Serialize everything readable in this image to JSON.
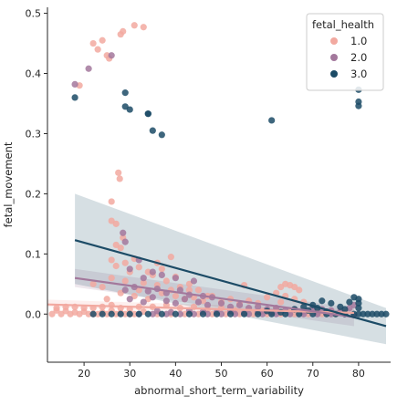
{
  "chart_data": {
    "type": "scatter",
    "xlabel": "abnormal_short_term_variability",
    "ylabel": "fetal_movement",
    "xlim": [
      12,
      87
    ],
    "ylim": [
      -0.08,
      0.51
    ],
    "x_ticks": [
      20,
      30,
      40,
      50,
      60,
      70,
      80
    ],
    "y_ticks": [
      0.0,
      0.1,
      0.2,
      0.3,
      0.4,
      0.5
    ],
    "grid": false,
    "legend": {
      "title": "fetal_health",
      "placement": "top-right"
    },
    "series": [
      {
        "name": "1.0",
        "color": "#f2a9a0",
        "points": [
          [
            13,
            0.0
          ],
          [
            14,
            0.01
          ],
          [
            15,
            0.0
          ],
          [
            16,
            0.005
          ],
          [
            17,
            0.0
          ],
          [
            18,
            0.012
          ],
          [
            19,
            0.0
          ],
          [
            20,
            0.004
          ],
          [
            21,
            0.0
          ],
          [
            22,
            0.01
          ],
          [
            23,
            0.0
          ],
          [
            24,
            0.003
          ],
          [
            25,
            0.0
          ],
          [
            26,
            0.015
          ],
          [
            27,
            0.0
          ],
          [
            28,
            0.002
          ],
          [
            29,
            0.0
          ],
          [
            30,
            0.008
          ],
          [
            31,
            0.0
          ],
          [
            32,
            0.012
          ],
          [
            14,
            0.006
          ],
          [
            16,
            0.012
          ],
          [
            18,
            0.003
          ],
          [
            20,
            0.01
          ],
          [
            22,
            0.0
          ],
          [
            24,
            0.012
          ],
          [
            26,
            0.006
          ],
          [
            28,
            0.01
          ],
          [
            30,
            0.0
          ],
          [
            33,
            0.004
          ],
          [
            19,
            0.38
          ],
          [
            22,
            0.45
          ],
          [
            23,
            0.44
          ],
          [
            24,
            0.455
          ],
          [
            25,
            0.43
          ],
          [
            25.5,
            0.425
          ],
          [
            28,
            0.465
          ],
          [
            28.5,
            0.47
          ],
          [
            31,
            0.48
          ],
          [
            33,
            0.477
          ],
          [
            27.5,
            0.235
          ],
          [
            27.8,
            0.225
          ],
          [
            26,
            0.187
          ],
          [
            26,
            0.155
          ],
          [
            27,
            0.15
          ],
          [
            28.5,
            0.127
          ],
          [
            27,
            0.115
          ],
          [
            28,
            0.11
          ],
          [
            31,
            0.092
          ],
          [
            36,
            0.085
          ],
          [
            39,
            0.095
          ],
          [
            26,
            0.09
          ],
          [
            27,
            0.08
          ],
          [
            29,
            0.085
          ],
          [
            30,
            0.07
          ],
          [
            32,
            0.078
          ],
          [
            34,
            0.07
          ],
          [
            35,
            0.065
          ],
          [
            37,
            0.075
          ],
          [
            40,
            0.062
          ],
          [
            22,
            0.05
          ],
          [
            24,
            0.045
          ],
          [
            26,
            0.06
          ],
          [
            29,
            0.055
          ],
          [
            33,
            0.052
          ],
          [
            36,
            0.048
          ],
          [
            38,
            0.055
          ],
          [
            41,
            0.045
          ],
          [
            43,
            0.05
          ],
          [
            45,
            0.04
          ],
          [
            28,
            0.035
          ],
          [
            31,
            0.03
          ],
          [
            34,
            0.025
          ],
          [
            37,
            0.035
          ],
          [
            40,
            0.03
          ],
          [
            42,
            0.025
          ],
          [
            44,
            0.028
          ],
          [
            46,
            0.022
          ],
          [
            48,
            0.03
          ],
          [
            50,
            0.02
          ],
          [
            52,
            0.025
          ],
          [
            54,
            0.018
          ],
          [
            56,
            0.022
          ],
          [
            58,
            0.018
          ],
          [
            60,
            0.028
          ],
          [
            62,
            0.035
          ],
          [
            63,
            0.045
          ],
          [
            64,
            0.05
          ],
          [
            65,
            0.048
          ],
          [
            66,
            0.045
          ],
          [
            67,
            0.04
          ],
          [
            64,
            0.03
          ],
          [
            66,
            0.025
          ],
          [
            68,
            0.02
          ],
          [
            63,
            0.02
          ],
          [
            35,
            0.012
          ],
          [
            38,
            0.015
          ],
          [
            41,
            0.01
          ],
          [
            44,
            0.012
          ],
          [
            47,
            0.008
          ],
          [
            50,
            0.01
          ],
          [
            53,
            0.006
          ],
          [
            56,
            0.008
          ],
          [
            59,
            0.005
          ],
          [
            62,
            0.01
          ],
          [
            65,
            0.006
          ],
          [
            68,
            0.005
          ],
          [
            71,
            0.003
          ],
          [
            74,
            0.004
          ],
          [
            77,
            0.002
          ],
          [
            36,
            0.0
          ],
          [
            39,
            0.0
          ],
          [
            42,
            0.0
          ],
          [
            45,
            0.0
          ],
          [
            48,
            0.0
          ],
          [
            51,
            0.0
          ],
          [
            54,
            0.0
          ],
          [
            57,
            0.0
          ],
          [
            60,
            0.0
          ],
          [
            63,
            0.0
          ],
          [
            66,
            0.0
          ],
          [
            69,
            0.0
          ],
          [
            72,
            0.0
          ],
          [
            75,
            0.0
          ],
          [
            55,
            0.048
          ],
          [
            47,
            0.03
          ],
          [
            43,
            0.04
          ],
          [
            39,
            0.04
          ],
          [
            32,
            0.04
          ],
          [
            25,
            0.025
          ]
        ]
      },
      {
        "name": "2.0",
        "color": "#a3789c",
        "points": [
          [
            18,
            0.382
          ],
          [
            21,
            0.408
          ],
          [
            26,
            0.43
          ],
          [
            28.5,
            0.135
          ],
          [
            29,
            0.12
          ],
          [
            32,
            0.09
          ],
          [
            35,
            0.07
          ],
          [
            30,
            0.075
          ],
          [
            33,
            0.06
          ],
          [
            37,
            0.065
          ],
          [
            40,
            0.06
          ],
          [
            44,
            0.055
          ],
          [
            29,
            0.04
          ],
          [
            31,
            0.045
          ],
          [
            34,
            0.038
          ],
          [
            36,
            0.042
          ],
          [
            38,
            0.035
          ],
          [
            41,
            0.04
          ],
          [
            43,
            0.032
          ],
          [
            46,
            0.03
          ],
          [
            48,
            0.028
          ],
          [
            30,
            0.025
          ],
          [
            33,
            0.02
          ],
          [
            35,
            0.028
          ],
          [
            38,
            0.022
          ],
          [
            40,
            0.018
          ],
          [
            42,
            0.025
          ],
          [
            45,
            0.02
          ],
          [
            47,
            0.015
          ],
          [
            50,
            0.018
          ],
          [
            52,
            0.012
          ],
          [
            54,
            0.015
          ],
          [
            56,
            0.01
          ],
          [
            58,
            0.012
          ],
          [
            60,
            0.008
          ],
          [
            62,
            0.01
          ],
          [
            64,
            0.006
          ],
          [
            66,
            0.008
          ],
          [
            68,
            0.005
          ],
          [
            70,
            0.01
          ],
          [
            72,
            0.008
          ],
          [
            74,
            0.006
          ],
          [
            76,
            0.004
          ],
          [
            78,
            0.01
          ],
          [
            79,
            0.015
          ],
          [
            32,
            0.0
          ],
          [
            35,
            0.0
          ],
          [
            38,
            0.0
          ],
          [
            41,
            0.0
          ],
          [
            44,
            0.0
          ],
          [
            47,
            0.0
          ],
          [
            50,
            0.0
          ],
          [
            53,
            0.0
          ],
          [
            56,
            0.0
          ],
          [
            59,
            0.0
          ],
          [
            62,
            0.0
          ],
          [
            65,
            0.0
          ],
          [
            68,
            0.0
          ],
          [
            71,
            0.0
          ],
          [
            74,
            0.0
          ],
          [
            77,
            0.0
          ],
          [
            79,
            -0.002
          ],
          [
            36,
            0.005
          ],
          [
            39,
            0.003
          ],
          [
            43,
            0.006
          ],
          [
            46,
            0.004
          ],
          [
            49,
            0.003
          ],
          [
            52,
            0.005
          ],
          [
            55,
            0.002
          ],
          [
            58,
            0.004
          ],
          [
            61,
            0.003
          ]
        ]
      },
      {
        "name": "3.0",
        "color": "#1c4b66",
        "points": [
          [
            18,
            0.36
          ],
          [
            29,
            0.368
          ],
          [
            29,
            0.345
          ],
          [
            30,
            0.34
          ],
          [
            34,
            0.333
          ],
          [
            34,
            0.333
          ],
          [
            35,
            0.305
          ],
          [
            37,
            0.298
          ],
          [
            61,
            0.322
          ],
          [
            80,
            0.373
          ],
          [
            80,
            0.353
          ],
          [
            80,
            0.346
          ],
          [
            22,
            0.0
          ],
          [
            24,
            0.0
          ],
          [
            26,
            0.0
          ],
          [
            28,
            0.0
          ],
          [
            30,
            0.0
          ],
          [
            32,
            0.0
          ],
          [
            34,
            0.0
          ],
          [
            37,
            0.0
          ],
          [
            40,
            0.0
          ],
          [
            43,
            0.0
          ],
          [
            46,
            0.0
          ],
          [
            49,
            0.0
          ],
          [
            52,
            0.0
          ],
          [
            55,
            0.0
          ],
          [
            58,
            0.0
          ],
          [
            61,
            0.0
          ],
          [
            64,
            0.0
          ],
          [
            67,
            0.0
          ],
          [
            70,
            0.0
          ],
          [
            73,
            0.0
          ],
          [
            75,
            0.0
          ],
          [
            77,
            0.0
          ],
          [
            79,
            0.0
          ],
          [
            80,
            0.0
          ],
          [
            81,
            0.0
          ],
          [
            82,
            0.0
          ],
          [
            83,
            0.0
          ],
          [
            84,
            0.0
          ],
          [
            85,
            0.0
          ],
          [
            86,
            0.0
          ],
          [
            60,
            0.005
          ],
          [
            63,
            0.003
          ],
          [
            66,
            0.008
          ],
          [
            68,
            0.012
          ],
          [
            70,
            0.015
          ],
          [
            72,
            0.022
          ],
          [
            74,
            0.018
          ],
          [
            76,
            0.012
          ],
          [
            78,
            0.02
          ],
          [
            80,
            0.025
          ],
          [
            80,
            0.018
          ],
          [
            80,
            0.01
          ],
          [
            79,
            0.028
          ],
          [
            77,
            0.008
          ],
          [
            71,
            0.01
          ],
          [
            69,
            0.006
          ],
          [
            73,
            0.004
          ]
        ]
      }
    ],
    "regression": [
      {
        "series": "1.0",
        "color": "#f2a9a0",
        "x": [
          12,
          79
        ],
        "y": [
          0.016,
          0.002
        ],
        "ci": [
          [
            0.024,
            0.008
          ],
          [
            0.012,
            -0.004
          ]
        ]
      },
      {
        "series": "2.0",
        "color": "#a3789c",
        "x": [
          18,
          79
        ],
        "y": [
          0.06,
          -0.005
        ],
        "ci": [
          [
            0.075,
            0.01
          ],
          [
            0.045,
            -0.02
          ]
        ]
      },
      {
        "series": "3.0",
        "color": "#1c4b66",
        "x": [
          18,
          86
        ],
        "y": [
          0.123,
          -0.02
        ],
        "ci": [
          [
            0.2,
            0.01
          ],
          [
            0.05,
            -0.05
          ]
        ]
      }
    ]
  }
}
